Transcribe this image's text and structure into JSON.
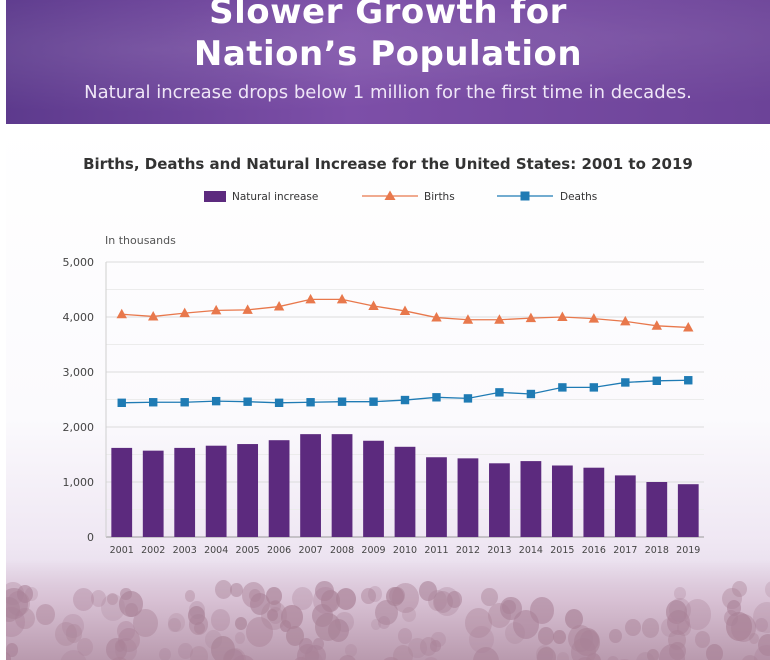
{
  "header": {
    "title_line1": "Slower Growth for",
    "title_line2": "Nation’s Population",
    "subtitle": "Natural increase drops below 1 million for the first time in decades."
  },
  "colors": {
    "header_bg": "#6c4398",
    "natural_increase": "#5c2a7e",
    "births": "#e8784c",
    "deaths": "#1f7bb4"
  },
  "chart_data": {
    "type": "bar",
    "title": "Births, Deaths and Natural Increase for the United States: 2001 to 2019",
    "unit_label": "In thousands",
    "categories": [
      "2001",
      "2002",
      "2003",
      "2004",
      "2005",
      "2006",
      "2007",
      "2008",
      "2009",
      "2010",
      "2011",
      "2012",
      "2013",
      "2014",
      "2015",
      "2016",
      "2017",
      "2018",
      "2019"
    ],
    "ylim": [
      0,
      5000
    ],
    "yticks": [
      0,
      1000,
      2000,
      3000,
      4000,
      5000
    ],
    "ytick_labels": [
      "0",
      "1,000",
      "2,000",
      "3,000",
      "4,000",
      "5,000"
    ],
    "grid": true,
    "legend_position": "top-center",
    "series": [
      {
        "name": "Natural increase",
        "kind": "bar",
        "values": [
          1620,
          1570,
          1620,
          1660,
          1690,
          1760,
          1870,
          1870,
          1750,
          1640,
          1450,
          1430,
          1340,
          1380,
          1300,
          1260,
          1120,
          1000,
          960
        ]
      },
      {
        "name": "Births",
        "kind": "line",
        "marker": "triangle",
        "values": [
          4050,
          4010,
          4070,
          4120,
          4130,
          4190,
          4320,
          4320,
          4200,
          4110,
          3990,
          3950,
          3950,
          3980,
          4000,
          3970,
          3920,
          3840,
          3810
        ]
      },
      {
        "name": "Deaths",
        "kind": "line",
        "marker": "square",
        "values": [
          2440,
          2450,
          2450,
          2470,
          2460,
          2440,
          2450,
          2460,
          2460,
          2490,
          2540,
          2520,
          2630,
          2600,
          2720,
          2720,
          2810,
          2840,
          2850
        ]
      }
    ]
  }
}
